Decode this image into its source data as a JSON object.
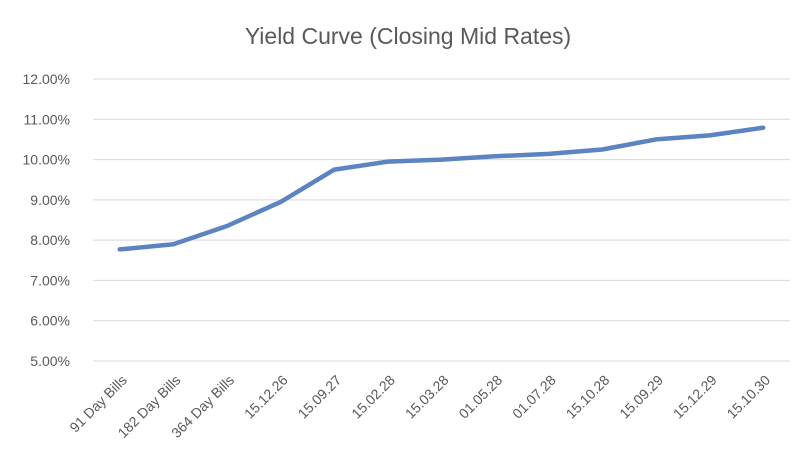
{
  "chart_data": {
    "type": "line",
    "title": "Yield Curve (Closing Mid Rates)",
    "xlabel": "",
    "ylabel": "",
    "categories": [
      "91 Day Bills",
      "182 Day Bills",
      "364 Day Bills",
      "15.12.26",
      "15.09.27",
      "15.02.28",
      "15.03.28",
      "01.05.28",
      "01.07.28",
      "15.10.28",
      "15.09.29",
      "15.12.29",
      "15.10.30"
    ],
    "series": [
      {
        "values": [
          7.77,
          7.9,
          8.35,
          8.95,
          9.75,
          9.95,
          10.0,
          10.08,
          10.14,
          10.25,
          10.5,
          10.6,
          10.79
        ],
        "color": "#5b84c0"
      }
    ],
    "ylim": [
      5,
      12
    ],
    "yticks": [
      5,
      6,
      7,
      8,
      9,
      10,
      11,
      12
    ],
    "ytick_labels": [
      "5.00%",
      "6.00%",
      "7.00%",
      "8.00%",
      "9.00%",
      "10.00%",
      "11.00%",
      "12.00%"
    ],
    "grid": true,
    "legend": "none"
  }
}
